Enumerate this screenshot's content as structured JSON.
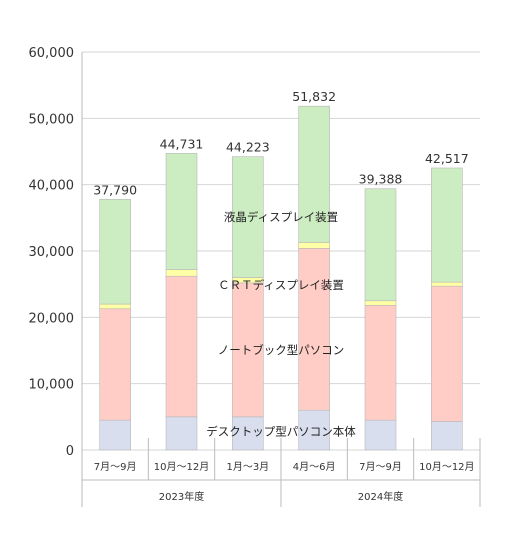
{
  "chart_data": {
    "type": "bar",
    "stacked": true,
    "categories": [
      "7月～9月",
      "10月～12月",
      "1月～3月",
      "4月～6月",
      "7月～9月",
      "10月～12月"
    ],
    "groups": [
      {
        "label": "2023年度",
        "categories": [
          0,
          1,
          2
        ]
      },
      {
        "label": "2024年度",
        "categories": [
          3,
          4,
          5
        ]
      }
    ],
    "series": [
      {
        "name": "デスクトップ型パソコン本体",
        "color": "#d9deef",
        "values": [
          4500,
          5000,
          5000,
          6000,
          4500,
          4300
        ]
      },
      {
        "name": "ノートブック型パソコン",
        "color": "#ffcdc6",
        "values": [
          16800,
          21200,
          20200,
          24400,
          17300,
          20400
        ]
      },
      {
        "name": "ＣＲＴディスプレイ装置",
        "color": "#ffffa6",
        "values": [
          700,
          1000,
          800,
          900,
          700,
          600
        ]
      },
      {
        "name": "液晶ディスプレイ装置",
        "color": "#ccecc1",
        "values": [
          15790,
          17531,
          18223,
          20532,
          16888,
          17217
        ]
      }
    ],
    "totals": [
      "37,790",
      "44,731",
      "44,223",
      "51,832",
      "39,388",
      "42,517"
    ],
    "highlight_color": "#ee3333",
    "highlight_index": 5,
    "ylim": [
      0,
      60000
    ],
    "yticks": [
      "0",
      "10,000",
      "20,000",
      "30,000",
      "40,000",
      "50,000",
      "60,000"
    ],
    "grid": true,
    "title": "",
    "xlabel": "",
    "ylabel": ""
  }
}
